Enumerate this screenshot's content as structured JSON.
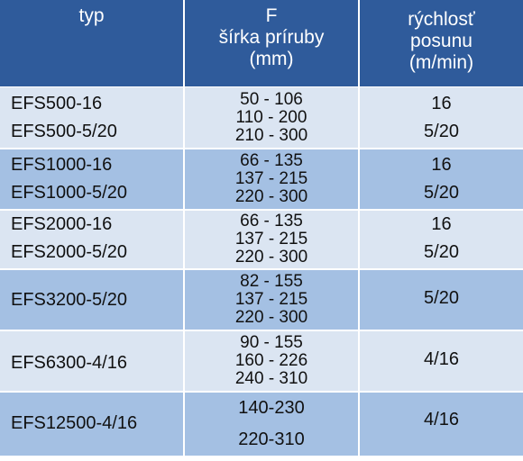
{
  "header": {
    "col1": "typ",
    "col2": [
      "F",
      "šírka príruby",
      "(mm)"
    ],
    "col3": [
      "rýchlosť",
      "posunu",
      "(m/min)"
    ]
  },
  "rows": [
    {
      "typ": [
        "EFS500-16",
        "EFS500-5/20"
      ],
      "f": [
        "50 - 106",
        "110 - 200",
        "210 - 300"
      ],
      "r": [
        "16",
        "5/20"
      ]
    },
    {
      "typ": [
        "EFS1000-16",
        "EFS1000-5/20"
      ],
      "f": [
        "66 - 135",
        "137 - 215",
        "220 - 300"
      ],
      "r": [
        "16",
        "5/20"
      ]
    },
    {
      "typ": [
        "EFS2000-16",
        "EFS2000-5/20"
      ],
      "f": [
        "66 - 135",
        "137 - 215",
        "220 - 300"
      ],
      "r": [
        "16",
        "5/20"
      ]
    },
    {
      "typ": [
        "EFS3200-5/20"
      ],
      "f": [
        "82 - 155",
        "137 - 215",
        "220 - 300"
      ],
      "r": [
        "5/20"
      ]
    },
    {
      "typ": [
        "EFS6300-4/16"
      ],
      "f": [
        "90 - 155",
        "160 - 226",
        "240 - 310"
      ],
      "r": [
        "4/16"
      ]
    },
    {
      "typ": [
        "EFS12500-4/16"
      ],
      "f": [
        "140-230",
        "220-310"
      ],
      "r": [
        "4/16"
      ]
    }
  ]
}
